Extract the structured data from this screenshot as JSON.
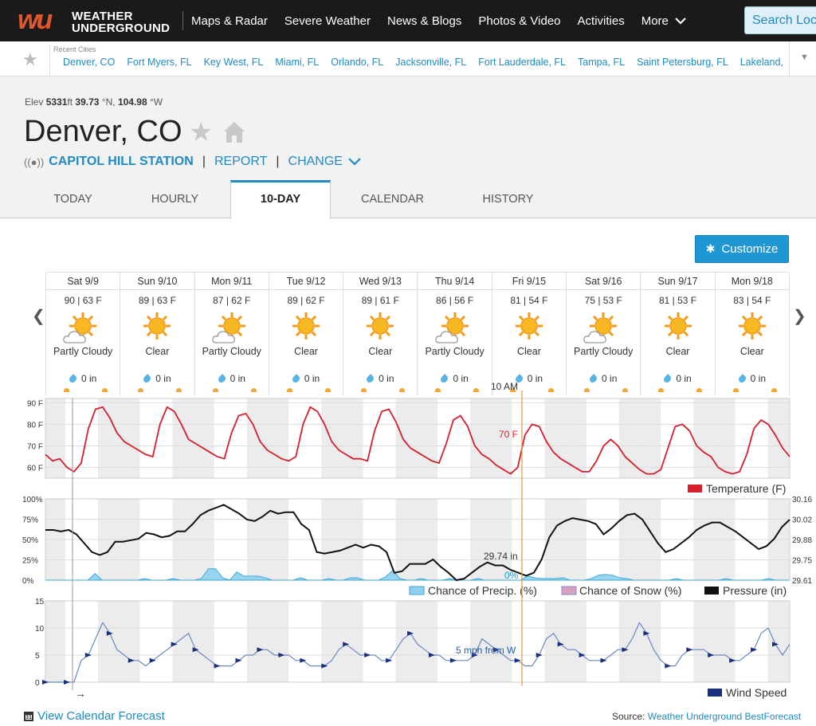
{
  "brand": {
    "logo_mark": "wu",
    "name_line1": "WEATHER",
    "name_line2": "UNDERGROUND"
  },
  "nav": {
    "items": [
      "Maps & Radar",
      "Severe Weather",
      "News & Blogs",
      "Photos & Video",
      "Activities"
    ],
    "more": "More",
    "search_placeholder": "Search Locations"
  },
  "recent": {
    "label": "Recent Cities",
    "cities": [
      "Denver, CO",
      "Fort Myers, FL",
      "Key West, FL",
      "Miami, FL",
      "Orlando, FL",
      "Jacksonville, FL",
      "Fort Lauderdale, FL",
      "Tampa, FL",
      "Saint Petersburg, FL",
      "Lakeland,"
    ]
  },
  "location": {
    "elev_label": "Elev",
    "elev": "5331",
    "elev_unit": "ft",
    "lat": "39.73",
    "lat_unit": "°N,",
    "lon": "104.98",
    "lon_unit": "°W",
    "city": "Denver, CO",
    "station": "CAPITOL HILL STATION",
    "report": "REPORT",
    "change": "CHANGE"
  },
  "tabs": [
    "TODAY",
    "HOURLY",
    "10-DAY",
    "CALENDAR",
    "HISTORY"
  ],
  "active_tab": "10-DAY",
  "customize_label": "Customize",
  "forecast": [
    {
      "day": "Sat 9/9",
      "temps": "90 | 63 F",
      "cond": "Partly Cloudy",
      "cloudy": true,
      "precip": "0 in"
    },
    {
      "day": "Sun 9/10",
      "temps": "89 | 63 F",
      "cond": "Clear",
      "cloudy": false,
      "precip": "0 in"
    },
    {
      "day": "Mon 9/11",
      "temps": "87 | 62 F",
      "cond": "Partly Cloudy",
      "cloudy": true,
      "precip": "0 in"
    },
    {
      "day": "Tue 9/12",
      "temps": "89 | 62 F",
      "cond": "Clear",
      "cloudy": false,
      "precip": "0 in"
    },
    {
      "day": "Wed 9/13",
      "temps": "89 | 61 F",
      "cond": "Clear",
      "cloudy": false,
      "precip": "0 in"
    },
    {
      "day": "Thu 9/14",
      "temps": "86 | 56 F",
      "cond": "Partly Cloudy",
      "cloudy": true,
      "precip": "0 in"
    },
    {
      "day": "Fri 9/15",
      "temps": "81 | 54 F",
      "cond": "Clear",
      "cloudy": false,
      "precip": "0 in"
    },
    {
      "day": "Sat 9/16",
      "temps": "75 | 53 F",
      "cond": "Partly Cloudy",
      "cloudy": true,
      "precip": "0 in"
    },
    {
      "day": "Sun 9/17",
      "temps": "81 | 53 F",
      "cond": "Clear",
      "cloudy": false,
      "precip": "0 in"
    },
    {
      "day": "Mon 9/18",
      "temps": "83 | 54 F",
      "cond": "Clear",
      "cloudy": false,
      "precip": "0 in"
    }
  ],
  "chart_data": [
    {
      "type": "line",
      "title": "",
      "y_ticks": [
        "90 F",
        "80 F",
        "70 F",
        "60 F"
      ],
      "ylim": [
        55,
        92
      ],
      "series": [
        {
          "name": "Temperature (F)",
          "color": "#d61f2c",
          "values": [
            66,
            63,
            64,
            60,
            58,
            62,
            78,
            87,
            88,
            83,
            76,
            72,
            70,
            68,
            66,
            65,
            80,
            88,
            86,
            80,
            73,
            71,
            69,
            67,
            65,
            64,
            76,
            84,
            85,
            80,
            72,
            68,
            66,
            64,
            63,
            65,
            80,
            88,
            86,
            80,
            72,
            68,
            66,
            64,
            64,
            63,
            77,
            86,
            87,
            81,
            73,
            69,
            67,
            65,
            63,
            62,
            71,
            82,
            84,
            79,
            70,
            66,
            64,
            61,
            59,
            57,
            60,
            75,
            80,
            79,
            72,
            67,
            64,
            62,
            60,
            58,
            58,
            63,
            70,
            73,
            70,
            65,
            62,
            59,
            57,
            57,
            59,
            69,
            79,
            80,
            77,
            70,
            67,
            65,
            60,
            58,
            57,
            58,
            66,
            78,
            82,
            80,
            75,
            69,
            65
          ]
        }
      ],
      "cursor_label": "10 AM",
      "cursor_value": "70 F",
      "legend": "Temperature (F)"
    },
    {
      "type": "area",
      "y_ticks": [
        "100%",
        "75%",
        "50%",
        "25%",
        "0%"
      ],
      "y2_ticks": [
        "30.16",
        "30.02",
        "29.88",
        "29.75",
        "29.61"
      ],
      "ylim": [
        0,
        100
      ],
      "y2lim": [
        29.61,
        30.16
      ],
      "series": [
        {
          "name": "Chance of Precip. (%)",
          "color": "#8fd0ee",
          "values": [
            0,
            0,
            0,
            0,
            0,
            0,
            0,
            8,
            0,
            0,
            0,
            0,
            0,
            0,
            2,
            0,
            0,
            0,
            2,
            0,
            0,
            0,
            2,
            14,
            14,
            3,
            0,
            10,
            5,
            5,
            5,
            3,
            0,
            0,
            0,
            0,
            3,
            0,
            0,
            0,
            2,
            0,
            0,
            3,
            3,
            0,
            0,
            0,
            4,
            12,
            2,
            0,
            0,
            2,
            0,
            0,
            0,
            2,
            0,
            0,
            0,
            2,
            0,
            0,
            0,
            0,
            0,
            0,
            5,
            3,
            2,
            2,
            2,
            3,
            0,
            0,
            0,
            2,
            6,
            7,
            6,
            3,
            2,
            0,
            0,
            0,
            0,
            0,
            0,
            2,
            0,
            0,
            0,
            0,
            0,
            0,
            2,
            0,
            0,
            0,
            0,
            0,
            2,
            0,
            0,
            0
          ]
        },
        {
          "name": "Chance of Snow (%)",
          "color": "#d9a0c0",
          "values": []
        },
        {
          "name": "Pressure (in)",
          "color": "#111",
          "values": [
            29.95,
            29.95,
            29.94,
            29.95,
            29.92,
            29.86,
            29.8,
            29.78,
            29.8,
            29.87,
            29.87,
            29.88,
            29.89,
            29.93,
            29.92,
            29.9,
            29.91,
            29.94,
            29.94,
            29.99,
            30.05,
            30.08,
            30.1,
            30.12,
            30.09,
            30.06,
            30.02,
            30.01,
            30.04,
            30.08,
            30.06,
            30.07,
            30.07,
            29.99,
            29.95,
            29.8,
            29.79,
            29.8,
            29.81,
            29.83,
            29.85,
            29.83,
            29.85,
            29.84,
            29.8,
            29.66,
            29.67,
            29.72,
            29.72,
            29.72,
            29.75,
            29.7,
            29.66,
            29.61,
            29.62,
            29.66,
            29.7,
            29.73,
            29.71,
            29.71,
            29.68,
            29.66,
            29.64,
            29.66,
            29.75,
            29.9,
            29.98,
            30.01,
            30.03,
            30.02,
            30.01,
            29.99,
            29.92,
            29.96,
            30.01,
            30.05,
            30.06,
            30.02,
            29.94,
            29.86,
            29.8,
            29.82,
            29.86,
            29.9,
            29.95,
            29.98,
            30.0,
            30.0,
            29.97,
            29.94,
            29.9,
            29.86,
            29.82,
            29.84,
            29.89,
            29.97,
            30.02
          ]
        }
      ],
      "cursor_pressure": "29.74 in",
      "cursor_precip": "0%",
      "legend": [
        "Chance of Precip. (%)",
        "Chance of Snow (%)",
        "Pressure (in)"
      ]
    },
    {
      "type": "line",
      "y_ticks": [
        "15",
        "10",
        "5",
        "0"
      ],
      "ylim": [
        0,
        15
      ],
      "series": [
        {
          "name": "Wind Speed",
          "color": "#1a2f7c",
          "values": [
            0,
            0,
            0,
            0,
            0,
            4,
            5,
            8,
            11,
            9,
            6,
            5,
            4,
            4,
            3,
            4,
            5,
            6,
            7,
            8,
            9,
            6,
            5,
            4,
            3,
            3,
            3,
            4,
            5,
            5,
            6,
            6,
            5,
            5,
            5,
            4,
            4,
            3,
            3,
            3,
            4,
            6,
            7,
            6,
            5,
            5,
            5,
            4,
            4,
            6,
            8,
            9,
            7,
            6,
            5,
            5,
            4,
            4,
            4,
            4,
            5,
            8,
            7,
            6,
            5,
            4,
            4,
            3,
            3,
            5,
            8,
            9,
            7,
            6,
            6,
            5,
            4,
            4,
            4,
            5,
            6,
            6,
            8,
            11,
            9,
            6,
            4,
            3,
            3,
            5,
            6,
            6,
            6,
            5,
            5,
            5,
            4,
            4,
            5,
            6,
            9,
            10,
            7,
            5,
            7
          ]
        }
      ],
      "cursor_label": "5 mph from W",
      "legend": "Wind Speed"
    }
  ],
  "footer": {
    "calendar_link": "View Calendar Forecast",
    "calendar_glyph": "31",
    "source_label": "Source:",
    "source_link": "Weather Underground BestForecast"
  }
}
